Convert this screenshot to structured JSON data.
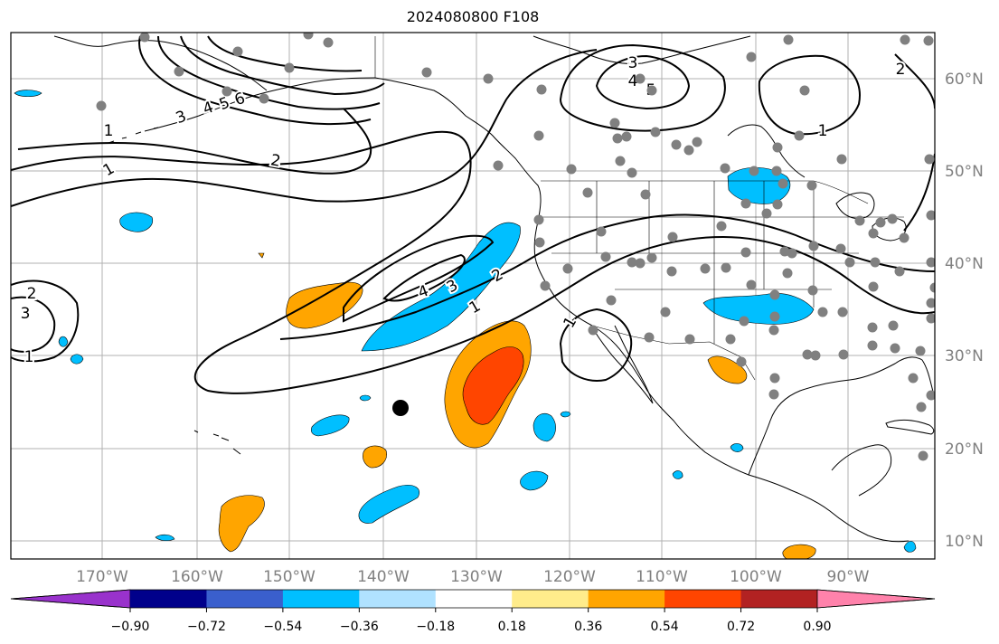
{
  "title": "2024080800 F108",
  "colors": {
    "ocean": "#ffffff",
    "grid": "#b0b0b0",
    "coast": "#000000",
    "contour": "#000000",
    "station": "#808080",
    "axis_label": "#808080"
  },
  "lon_labels": [
    "170°W",
    "160°W",
    "150°W",
    "140°W",
    "130°W",
    "120°W",
    "110°W",
    "100°W",
    "90°W"
  ],
  "lat_labels": [
    "60°N",
    "50°N",
    "40°N",
    "30°N",
    "20°N",
    "10°N"
  ],
  "colorbar": {
    "colors": [
      "#9932cc",
      "#00008b",
      "#3a5fcd",
      "#00bfff",
      "#b0e2ff",
      "#ffffff",
      "#ffec8b",
      "#ffa500",
      "#ff4500",
      "#b22222",
      "#ff82ab"
    ],
    "tick_labels": [
      "−0.90",
      "−0.72",
      "−0.54",
      "−0.36",
      "−0.18",
      "0.18",
      "0.36",
      "0.54",
      "0.72",
      "0.90"
    ]
  },
  "contour_labels": [
    "1",
    "2",
    "3",
    "4",
    "5",
    "6"
  ],
  "shading_colors": {
    "cyan": "#00bfff",
    "orange": "#ffa500",
    "red_orange": "#ff4500"
  }
}
